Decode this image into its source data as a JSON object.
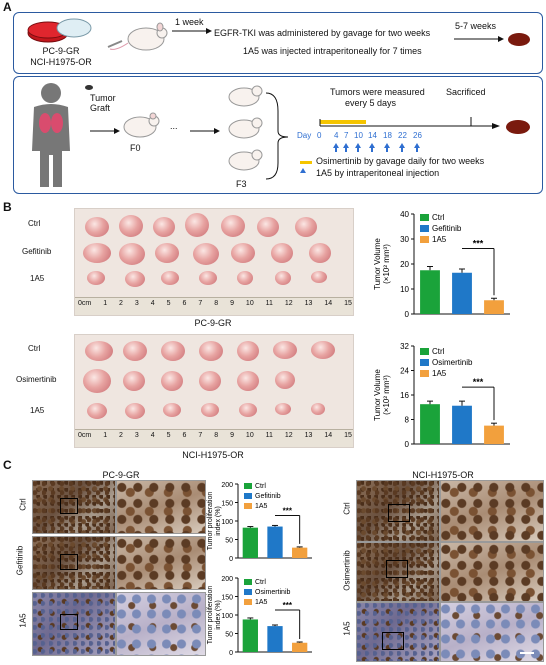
{
  "panel_a": {
    "letter": "A",
    "row1": {
      "cell_lines": [
        "PC-9-GR",
        "NCI-H1975-OR"
      ],
      "arrow_label": "1 week",
      "text_line1": "EGFR-TKI was administered by gavage for two weeks",
      "text_line2": "1A5 was injected intraperitoneally for 7 times",
      "arrow2_label": "5-7 weeks"
    },
    "row2": {
      "tumor_graft": "Tumor Graft",
      "f0": "F0",
      "dots": "...",
      "f3": "F3",
      "measured_line1": "Tumors were measured",
      "measured_line2": "every 5 days",
      "sacrificed": "Sacrificed",
      "day_label": "Day",
      "days": [
        "0",
        "4",
        "7",
        "10",
        "14",
        "18",
        "22",
        "26"
      ],
      "legend_osim": "Osimertinib by gavage daily for two weeks",
      "legend_1a5": "1A5 by intraperitoneal injection"
    }
  },
  "panel_b": {
    "letter": "B",
    "ruler_labels": [
      "0cm",
      "1",
      "2",
      "3",
      "4",
      "5",
      "6",
      "7",
      "8",
      "9",
      "10",
      "11",
      "12",
      "13",
      "14",
      "15"
    ],
    "top": {
      "rows": [
        "Ctrl",
        "Gefitinib",
        "1A5"
      ],
      "caption": "PC-9-GR"
    },
    "bottom": {
      "rows": [
        "Ctrl",
        "Osimertinib",
        "1A5"
      ],
      "caption": "NCI-H1975-OR"
    }
  },
  "panel_c": {
    "letter": "C",
    "left_title": "PC-9-GR",
    "left_rows": [
      "Ctrl",
      "Gefitinib",
      "1A5"
    ],
    "right_title": "NCI-H1975-OR",
    "right_rows": [
      "Ctrl",
      "Osimertinib",
      "1A5"
    ]
  },
  "colors": {
    "ctrl": "#1aa33a",
    "treat": "#1f78c8",
    "a15": "#f2a03d",
    "frame": "#2b5aa0",
    "dayblue": "#2f6fd1",
    "osimbar": "#f5c500"
  },
  "chart_data": [
    {
      "type": "bar",
      "ylabel_line1": "Tumor Volume",
      "ylabel_line2": "(×10² mm³)",
      "categories": [
        "Ctrl",
        "Gefitinib",
        "1A5"
      ],
      "values": [
        17.5,
        16.5,
        5.5
      ],
      "errors": [
        1.5,
        1.5,
        0.8
      ],
      "yticks": [
        0,
        10,
        20,
        30,
        40
      ],
      "ylim": [
        0,
        40
      ],
      "significance": "***",
      "legend": [
        "Ctrl",
        "Gefitinib",
        "1A5"
      ]
    },
    {
      "type": "bar",
      "ylabel_line1": "Tumor Volume",
      "ylabel_line2": "(×10² mm³)",
      "categories": [
        "Ctrl",
        "Osimertinib",
        "1A5"
      ],
      "values": [
        13,
        12.5,
        6
      ],
      "errors": [
        1.0,
        1.5,
        0.8
      ],
      "yticks": [
        0,
        8,
        16,
        24,
        32
      ],
      "ylim": [
        0,
        32
      ],
      "significance": "***",
      "legend": [
        "Ctrl",
        "Osimertinib",
        "1A5"
      ]
    },
    {
      "type": "bar",
      "ylabel_line1": "Tumor proliferation",
      "ylabel_line2": "index (%)",
      "categories": [
        "Ctrl",
        "Gefitinib",
        "1A5"
      ],
      "values": [
        82,
        85,
        28
      ],
      "errors": [
        3,
        3,
        2
      ],
      "yticks": [
        0,
        50,
        100,
        150,
        200
      ],
      "ylim": [
        0,
        200
      ],
      "significance": "***",
      "legend": [
        "Ctrl",
        "Gefitinib",
        "1A5"
      ]
    },
    {
      "type": "bar",
      "ylabel_line1": "Tumor proliferation",
      "ylabel_line2": "index (%)",
      "categories": [
        "Ctrl",
        "Osimertinib",
        "1A5"
      ],
      "values": [
        88,
        70,
        25
      ],
      "errors": [
        4,
        3,
        2
      ],
      "yticks": [
        0,
        50,
        100,
        150,
        200
      ],
      "ylim": [
        0,
        200
      ],
      "significance": "***",
      "legend": [
        "Ctrl",
        "Osimertinib",
        "1A5"
      ]
    }
  ]
}
